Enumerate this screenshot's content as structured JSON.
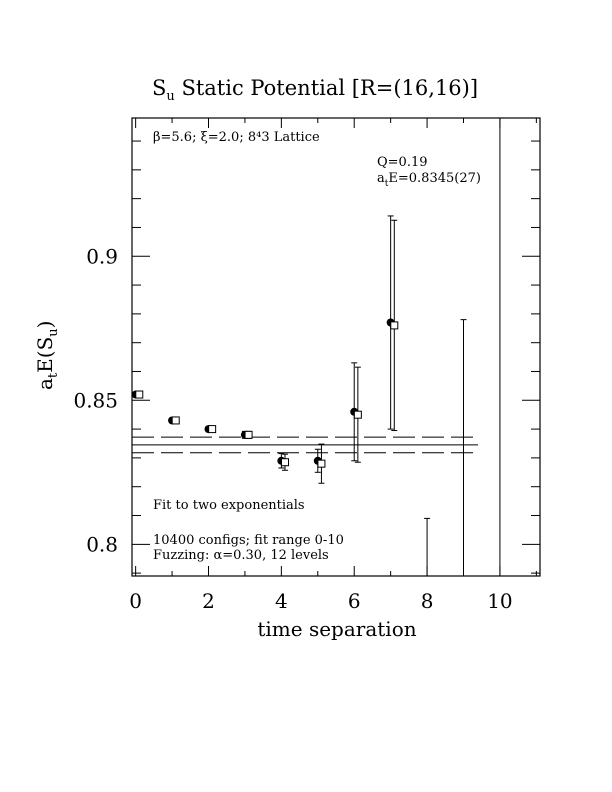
{
  "chart_data": {
    "type": "scatter",
    "title_main": "S",
    "title_sub": "u",
    "title_rest": " Static Potential [R=(16,16)]",
    "xlabel": "time separation",
    "ylabel_a": "a",
    "ylabel_t": "t",
    "ylabel_mid": "E(S",
    "ylabel_u": "u",
    "ylabel_end": ")",
    "xlim": [
      -0.1,
      11.1
    ],
    "ylim": [
      0.789,
      0.948
    ],
    "xticks": [
      0,
      2,
      4,
      6,
      8,
      10
    ],
    "xtick_labels": [
      "0",
      "2",
      "4",
      "6",
      "8",
      "10"
    ],
    "yticks": [
      0.8,
      0.85,
      0.9
    ],
    "ytick_labels": [
      "0.8",
      "0.85",
      "0.9"
    ],
    "annotations": {
      "lattice": "β=5.6; ξ=2.0; 8⁴3 Lattice",
      "q": "Q=0.19",
      "fit_a": "a",
      "fit_t": "t",
      "fit_rest": "E=0.8345(27)",
      "fit_type": "Fit to two exponentials",
      "configs": "10400 configs; fit range 0-10",
      "fuzzing": "Fuzzing: α=0.30, 12 levels"
    },
    "fit": {
      "value": 0.8345,
      "error": 0.0027,
      "x_range": [
        -0.1,
        9.4
      ]
    },
    "series": [
      {
        "marker": "filled-circle",
        "x": [
          0,
          1,
          2,
          3,
          4,
          5,
          6,
          7
        ],
        "y": [
          0.852,
          0.843,
          0.84,
          0.838,
          0.829,
          0.829,
          0.846,
          0.877
        ],
        "err": [
          0.0008,
          0.0008,
          0.0009,
          0.0012,
          0.0025,
          0.004,
          0.017,
          0.037
        ]
      },
      {
        "marker": "open-square",
        "x": [
          0.1,
          1.1,
          2.1,
          3.1,
          4.1,
          5.1,
          6.1,
          7.1
        ],
        "y": [
          0.852,
          0.843,
          0.84,
          0.838,
          0.8285,
          0.828,
          0.845,
          0.876
        ],
        "err": [
          0.0008,
          0.0008,
          0.0009,
          0.0012,
          0.0028,
          0.0068,
          0.0165,
          0.0365
        ]
      },
      {
        "marker": "none",
        "x": [
          8,
          9,
          10
        ],
        "y": [
          0.789,
          0.789,
          0.789
        ],
        "err_top": [
          0.809,
          0.878,
          0.948
        ]
      }
    ]
  }
}
